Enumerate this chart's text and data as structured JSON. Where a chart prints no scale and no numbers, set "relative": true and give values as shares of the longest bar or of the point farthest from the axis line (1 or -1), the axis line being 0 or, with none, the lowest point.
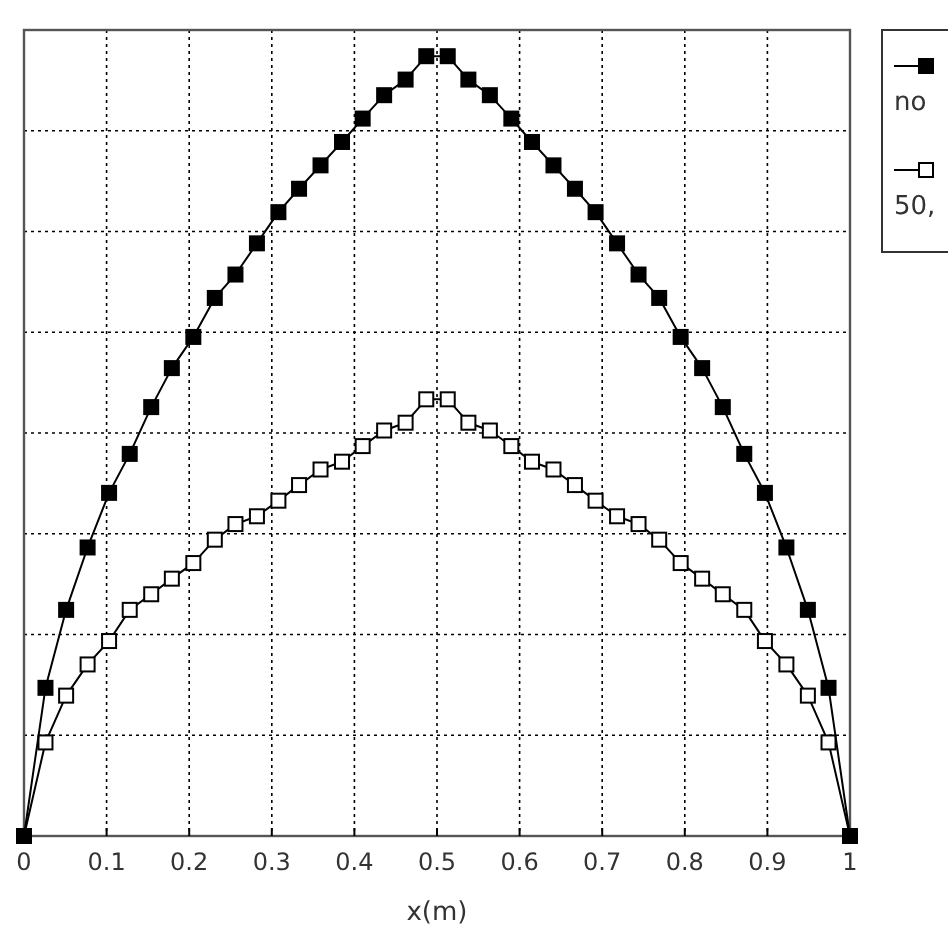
{
  "chart_data": {
    "type": "line",
    "relative": true,
    "xlabel": "x(m)",
    "xlim": [
      0,
      1
    ],
    "xticks": [
      0,
      0.1,
      0.2,
      0.3,
      0.4,
      0.5,
      0.6,
      0.7,
      0.8,
      0.9,
      1
    ],
    "grid": true,
    "legend": "top right",
    "marker": "square",
    "line_style": "solid",
    "tick_labels": "x",
    "x": [
      0,
      0.026,
      0.051,
      0.077,
      0.103,
      0.128,
      0.154,
      0.179,
      0.205,
      0.231,
      0.256,
      0.282,
      0.308,
      0.333,
      0.359,
      0.385,
      0.41,
      0.436,
      0.462,
      0.487,
      0.513,
      0.538,
      0.564,
      0.59,
      0.615,
      0.641,
      0.667,
      0.692,
      0.718,
      0.744,
      0.769,
      0.795,
      0.821,
      0.846,
      0.872,
      0.897,
      0.923,
      0.949,
      0.974,
      1
    ],
    "series": [
      {
        "name": "no",
        "color": "#000000",
        "values": [
          0,
          0.19,
          0.29,
          0.37,
          0.44,
          0.49,
          0.55,
          0.6,
          0.64,
          0.69,
          0.72,
          0.76,
          0.8,
          0.83,
          0.86,
          0.89,
          0.92,
          0.95,
          0.97,
          1,
          1,
          0.97,
          0.95,
          0.92,
          0.89,
          0.86,
          0.83,
          0.8,
          0.76,
          0.72,
          0.69,
          0.64,
          0.6,
          0.55,
          0.49,
          0.44,
          0.37,
          0.29,
          0.19,
          0
        ]
      },
      {
        "name": "50,",
        "color": "#000000",
        "values": [
          0,
          0.12,
          0.18,
          0.22,
          0.25,
          0.29,
          0.31,
          0.33,
          0.35,
          0.38,
          0.4,
          0.41,
          0.43,
          0.45,
          0.47,
          0.48,
          0.5,
          0.52,
          0.53,
          0.56,
          0.56,
          0.53,
          0.52,
          0.5,
          0.48,
          0.47,
          0.45,
          0.43,
          0.41,
          0.4,
          0.38,
          0.35,
          0.33,
          0.31,
          0.29,
          0.25,
          0.22,
          0.18,
          0.12,
          0
        ]
      }
    ]
  }
}
